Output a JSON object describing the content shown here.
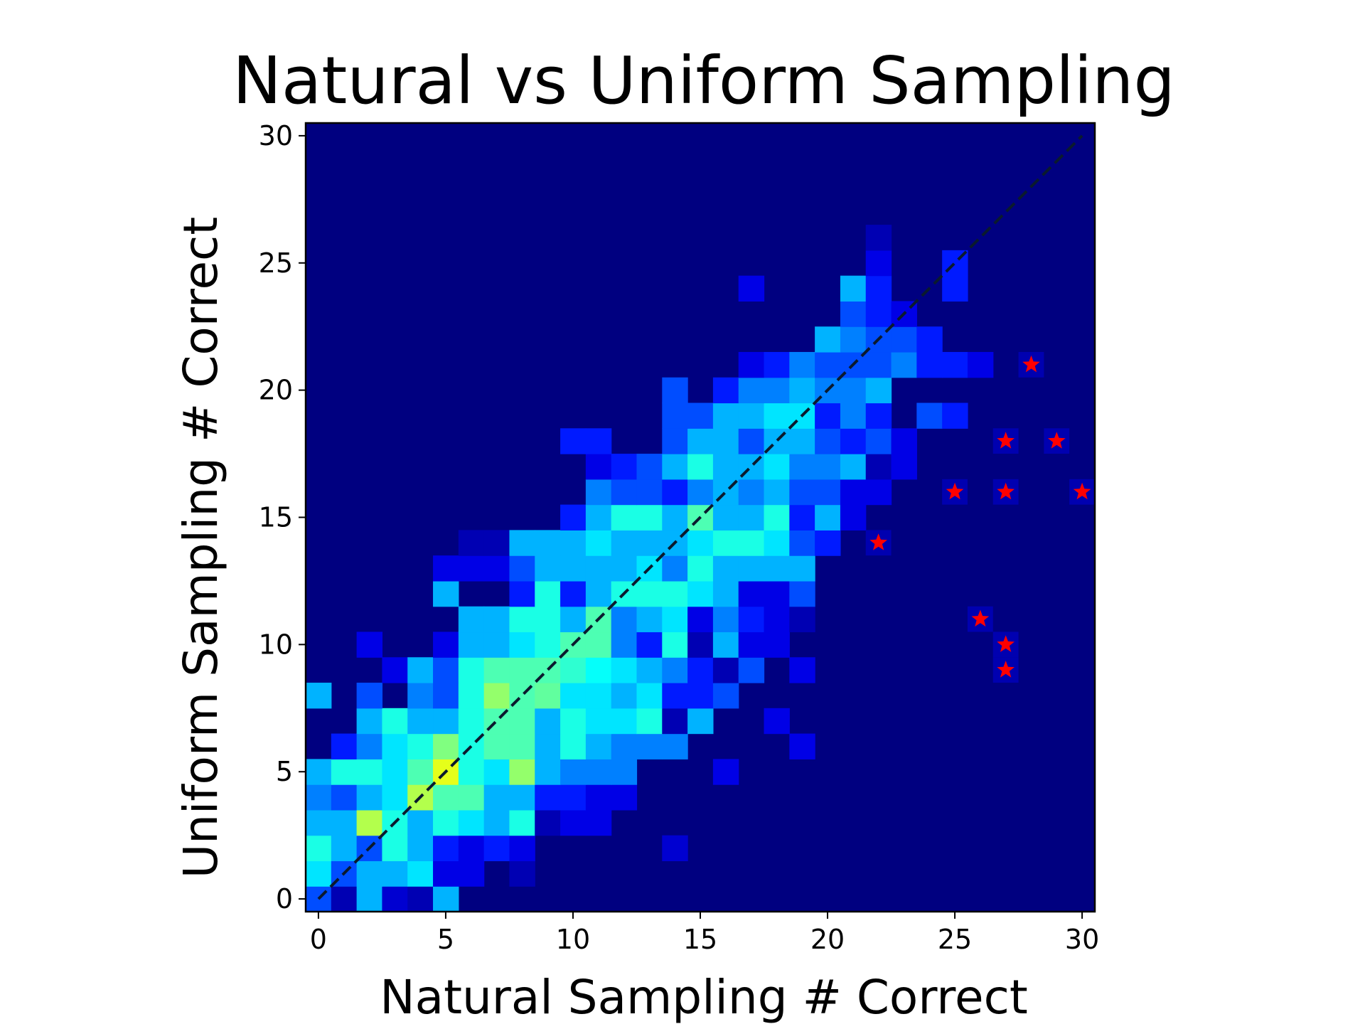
{
  "chart_data": {
    "type": "heatmap",
    "title": "Natural vs Uniform Sampling",
    "xlabel": "Natural Sampling # Correct",
    "ylabel": "Uniform Sampling # Correct",
    "xlim": [
      -0.5,
      30.5
    ],
    "ylim": [
      -0.5,
      30.5
    ],
    "x_ticks": [
      "0",
      "5",
      "10",
      "15",
      "20",
      "25",
      "30"
    ],
    "y_ticks": [
      "0",
      "5",
      "10",
      "15",
      "20",
      "25",
      "30"
    ],
    "colormap": "jet",
    "background_color": "#000080",
    "grid": false,
    "legend": "none",
    "heatmap_cells": [
      [
        0,
        0,
        0.2
      ],
      [
        1,
        0,
        0.05
      ],
      [
        2,
        0,
        0.3
      ],
      [
        3,
        0,
        0.08
      ],
      [
        4,
        0,
        0.05
      ],
      [
        5,
        0,
        0.3
      ],
      [
        0,
        1,
        0.35
      ],
      [
        1,
        1,
        0.2
      ],
      [
        2,
        1,
        0.3
      ],
      [
        3,
        1,
        0.3
      ],
      [
        4,
        1,
        0.35
      ],
      [
        5,
        1,
        0.1
      ],
      [
        6,
        1,
        0.1
      ],
      [
        8,
        1,
        0.05
      ],
      [
        0,
        2,
        0.4
      ],
      [
        1,
        2,
        0.3
      ],
      [
        2,
        2,
        0.2
      ],
      [
        3,
        2,
        0.4
      ],
      [
        4,
        2,
        0.3
      ],
      [
        5,
        2,
        0.15
      ],
      [
        6,
        2,
        0.1
      ],
      [
        7,
        2,
        0.15
      ],
      [
        8,
        2,
        0.1
      ],
      [
        14,
        2,
        0.08
      ],
      [
        0,
        3,
        0.3
      ],
      [
        1,
        3,
        0.3
      ],
      [
        2,
        3,
        0.55
      ],
      [
        3,
        3,
        0.4
      ],
      [
        4,
        3,
        0.3
      ],
      [
        5,
        3,
        0.4
      ],
      [
        6,
        3,
        0.35
      ],
      [
        7,
        3,
        0.3
      ],
      [
        8,
        3,
        0.4
      ],
      [
        9,
        3,
        0.05
      ],
      [
        10,
        3,
        0.1
      ],
      [
        11,
        3,
        0.1
      ],
      [
        0,
        4,
        0.25
      ],
      [
        1,
        4,
        0.2
      ],
      [
        2,
        4,
        0.3
      ],
      [
        3,
        4,
        0.35
      ],
      [
        4,
        4,
        0.55
      ],
      [
        5,
        4,
        0.45
      ],
      [
        6,
        4,
        0.45
      ],
      [
        7,
        4,
        0.3
      ],
      [
        8,
        4,
        0.3
      ],
      [
        9,
        4,
        0.15
      ],
      [
        10,
        4,
        0.15
      ],
      [
        11,
        4,
        0.1
      ],
      [
        12,
        4,
        0.1
      ],
      [
        0,
        5,
        0.3
      ],
      [
        1,
        5,
        0.4
      ],
      [
        2,
        5,
        0.4
      ],
      [
        3,
        5,
        0.35
      ],
      [
        4,
        5,
        0.45
      ],
      [
        5,
        5,
        0.6
      ],
      [
        6,
        5,
        0.4
      ],
      [
        7,
        5,
        0.35
      ],
      [
        8,
        5,
        0.52
      ],
      [
        9,
        5,
        0.3
      ],
      [
        10,
        5,
        0.25
      ],
      [
        11,
        5,
        0.25
      ],
      [
        12,
        5,
        0.25
      ],
      [
        16,
        5,
        0.1
      ],
      [
        1,
        6,
        0.15
      ],
      [
        2,
        6,
        0.25
      ],
      [
        3,
        6,
        0.35
      ],
      [
        4,
        6,
        0.4
      ],
      [
        5,
        6,
        0.5
      ],
      [
        6,
        6,
        0.4
      ],
      [
        7,
        6,
        0.45
      ],
      [
        8,
        6,
        0.45
      ],
      [
        9,
        6,
        0.3
      ],
      [
        10,
        6,
        0.4
      ],
      [
        11,
        6,
        0.3
      ],
      [
        12,
        6,
        0.25
      ],
      [
        13,
        6,
        0.25
      ],
      [
        14,
        6,
        0.25
      ],
      [
        19,
        6,
        0.1
      ],
      [
        2,
        7,
        0.3
      ],
      [
        3,
        7,
        0.4
      ],
      [
        4,
        7,
        0.3
      ],
      [
        5,
        7,
        0.3
      ],
      [
        6,
        7,
        0.4
      ],
      [
        7,
        7,
        0.45
      ],
      [
        8,
        7,
        0.45
      ],
      [
        9,
        7,
        0.3
      ],
      [
        10,
        7,
        0.4
      ],
      [
        11,
        7,
        0.35
      ],
      [
        12,
        7,
        0.35
      ],
      [
        13,
        7,
        0.4
      ],
      [
        14,
        7,
        0.05
      ],
      [
        15,
        7,
        0.3
      ],
      [
        18,
        7,
        0.1
      ],
      [
        0,
        8,
        0.3
      ],
      [
        2,
        8,
        0.2
      ],
      [
        4,
        8,
        0.25
      ],
      [
        5,
        8,
        0.2
      ],
      [
        6,
        8,
        0.4
      ],
      [
        7,
        8,
        0.52
      ],
      [
        8,
        8,
        0.45
      ],
      [
        9,
        8,
        0.47
      ],
      [
        10,
        8,
        0.35
      ],
      [
        11,
        8,
        0.35
      ],
      [
        12,
        8,
        0.3
      ],
      [
        13,
        8,
        0.35
      ],
      [
        14,
        8,
        0.15
      ],
      [
        15,
        8,
        0.15
      ],
      [
        16,
        8,
        0.2
      ],
      [
        3,
        9,
        0.1
      ],
      [
        4,
        9,
        0.3
      ],
      [
        5,
        9,
        0.2
      ],
      [
        6,
        9,
        0.4
      ],
      [
        7,
        9,
        0.45
      ],
      [
        8,
        9,
        0.45
      ],
      [
        9,
        9,
        0.45
      ],
      [
        10,
        9,
        0.42
      ],
      [
        11,
        9,
        0.38
      ],
      [
        12,
        9,
        0.35
      ],
      [
        13,
        9,
        0.3
      ],
      [
        14,
        9,
        0.25
      ],
      [
        15,
        9,
        0.15
      ],
      [
        16,
        9,
        0.05
      ],
      [
        17,
        9,
        0.2
      ],
      [
        19,
        9,
        0.1
      ],
      [
        2,
        10,
        0.1
      ],
      [
        5,
        10,
        0.1
      ],
      [
        6,
        10,
        0.3
      ],
      [
        7,
        10,
        0.3
      ],
      [
        8,
        10,
        0.35
      ],
      [
        9,
        10,
        0.4
      ],
      [
        10,
        10,
        0.45
      ],
      [
        11,
        10,
        0.45
      ],
      [
        12,
        10,
        0.25
      ],
      [
        13,
        10,
        0.15
      ],
      [
        14,
        10,
        0.4
      ],
      [
        15,
        10,
        0.05
      ],
      [
        16,
        10,
        0.3
      ],
      [
        17,
        10,
        0.1
      ],
      [
        18,
        10,
        0.1
      ],
      [
        6,
        11,
        0.3
      ],
      [
        7,
        11,
        0.3
      ],
      [
        8,
        11,
        0.4
      ],
      [
        9,
        11,
        0.4
      ],
      [
        10,
        11,
        0.3
      ],
      [
        11,
        11,
        0.45
      ],
      [
        12,
        11,
        0.25
      ],
      [
        13,
        11,
        0.3
      ],
      [
        14,
        11,
        0.35
      ],
      [
        15,
        11,
        0.1
      ],
      [
        16,
        11,
        0.25
      ],
      [
        17,
        11,
        0.15
      ],
      [
        18,
        11,
        0.1
      ],
      [
        19,
        11,
        0.05
      ],
      [
        5,
        12,
        0.3
      ],
      [
        8,
        12,
        0.15
      ],
      [
        9,
        12,
        0.4
      ],
      [
        10,
        12,
        0.15
      ],
      [
        11,
        12,
        0.3
      ],
      [
        12,
        12,
        0.4
      ],
      [
        13,
        12,
        0.4
      ],
      [
        14,
        12,
        0.4
      ],
      [
        15,
        12,
        0.35
      ],
      [
        16,
        12,
        0.3
      ],
      [
        17,
        12,
        0.1
      ],
      [
        18,
        12,
        0.1
      ],
      [
        19,
        12,
        0.2
      ],
      [
        5,
        13,
        0.1
      ],
      [
        6,
        13,
        0.1
      ],
      [
        7,
        13,
        0.1
      ],
      [
        8,
        13,
        0.2
      ],
      [
        9,
        13,
        0.3
      ],
      [
        10,
        13,
        0.3
      ],
      [
        11,
        13,
        0.3
      ],
      [
        12,
        13,
        0.3
      ],
      [
        13,
        13,
        0.35
      ],
      [
        14,
        13,
        0.25
      ],
      [
        15,
        13,
        0.4
      ],
      [
        16,
        13,
        0.3
      ],
      [
        17,
        13,
        0.3
      ],
      [
        18,
        13,
        0.3
      ],
      [
        19,
        13,
        0.3
      ],
      [
        6,
        14,
        0.05
      ],
      [
        7,
        14,
        0.05
      ],
      [
        8,
        14,
        0.3
      ],
      [
        9,
        14,
        0.3
      ],
      [
        10,
        14,
        0.3
      ],
      [
        11,
        14,
        0.35
      ],
      [
        12,
        14,
        0.3
      ],
      [
        13,
        14,
        0.3
      ],
      [
        14,
        14,
        0.3
      ],
      [
        15,
        14,
        0.35
      ],
      [
        16,
        14,
        0.4
      ],
      [
        17,
        14,
        0.4
      ],
      [
        18,
        14,
        0.35
      ],
      [
        19,
        14,
        0.2
      ],
      [
        20,
        14,
        0.15
      ],
      [
        10,
        15,
        0.15
      ],
      [
        11,
        15,
        0.3
      ],
      [
        12,
        15,
        0.4
      ],
      [
        13,
        15,
        0.4
      ],
      [
        14,
        15,
        0.3
      ],
      [
        15,
        15,
        0.45
      ],
      [
        16,
        15,
        0.3
      ],
      [
        17,
        15,
        0.3
      ],
      [
        18,
        15,
        0.4
      ],
      [
        19,
        15,
        0.15
      ],
      [
        20,
        15,
        0.3
      ],
      [
        21,
        15,
        0.1
      ],
      [
        11,
        16,
        0.25
      ],
      [
        12,
        16,
        0.2
      ],
      [
        13,
        16,
        0.2
      ],
      [
        14,
        16,
        0.15
      ],
      [
        15,
        16,
        0.25
      ],
      [
        16,
        16,
        0.3
      ],
      [
        17,
        16,
        0.25
      ],
      [
        18,
        16,
        0.3
      ],
      [
        19,
        16,
        0.2
      ],
      [
        20,
        16,
        0.2
      ],
      [
        21,
        16,
        0.1
      ],
      [
        22,
        16,
        0.1
      ],
      [
        11,
        17,
        0.1
      ],
      [
        12,
        17,
        0.15
      ],
      [
        13,
        17,
        0.2
      ],
      [
        14,
        17,
        0.3
      ],
      [
        15,
        17,
        0.4
      ],
      [
        16,
        17,
        0.3
      ],
      [
        17,
        17,
        0.3
      ],
      [
        18,
        17,
        0.35
      ],
      [
        19,
        17,
        0.25
      ],
      [
        20,
        17,
        0.25
      ],
      [
        21,
        17,
        0.3
      ],
      [
        22,
        17,
        0.05
      ],
      [
        23,
        17,
        0.1
      ],
      [
        10,
        18,
        0.15
      ],
      [
        11,
        18,
        0.15
      ],
      [
        14,
        18,
        0.2
      ],
      [
        15,
        18,
        0.3
      ],
      [
        16,
        18,
        0.3
      ],
      [
        17,
        18,
        0.2
      ],
      [
        18,
        18,
        0.3
      ],
      [
        19,
        18,
        0.3
      ],
      [
        20,
        18,
        0.2
      ],
      [
        21,
        18,
        0.15
      ],
      [
        22,
        18,
        0.2
      ],
      [
        23,
        18,
        0.1
      ],
      [
        14,
        19,
        0.2
      ],
      [
        15,
        19,
        0.2
      ],
      [
        16,
        19,
        0.3
      ],
      [
        17,
        19,
        0.3
      ],
      [
        18,
        19,
        0.35
      ],
      [
        19,
        19,
        0.35
      ],
      [
        20,
        19,
        0.15
      ],
      [
        21,
        19,
        0.25
      ],
      [
        22,
        19,
        0.15
      ],
      [
        24,
        19,
        0.2
      ],
      [
        25,
        19,
        0.15
      ],
      [
        14,
        20,
        0.2
      ],
      [
        16,
        20,
        0.15
      ],
      [
        17,
        20,
        0.25
      ],
      [
        18,
        20,
        0.25
      ],
      [
        19,
        20,
        0.3
      ],
      [
        20,
        20,
        0.25
      ],
      [
        21,
        20,
        0.25
      ],
      [
        22,
        20,
        0.3
      ],
      [
        17,
        21,
        0.1
      ],
      [
        18,
        21,
        0.15
      ],
      [
        19,
        21,
        0.25
      ],
      [
        20,
        21,
        0.2
      ],
      [
        21,
        21,
        0.2
      ],
      [
        22,
        21,
        0.2
      ],
      [
        23,
        21,
        0.25
      ],
      [
        24,
        21,
        0.15
      ],
      [
        25,
        21,
        0.15
      ],
      [
        26,
        21,
        0.1
      ],
      [
        20,
        22,
        0.3
      ],
      [
        21,
        22,
        0.25
      ],
      [
        22,
        22,
        0.2
      ],
      [
        23,
        22,
        0.2
      ],
      [
        24,
        22,
        0.15
      ],
      [
        21,
        23,
        0.2
      ],
      [
        22,
        23,
        0.15
      ],
      [
        23,
        23,
        0.1
      ],
      [
        21,
        24,
        0.3
      ],
      [
        22,
        24,
        0.15
      ],
      [
        25,
        24,
        0.15
      ],
      [
        17,
        24,
        0.1
      ],
      [
        22,
        25,
        0.1
      ],
      [
        25,
        25,
        0.15
      ],
      [
        22,
        26,
        0.05
      ]
    ],
    "star_markers": [
      {
        "x": 22,
        "y": 14
      },
      {
        "x": 25,
        "y": 16
      },
      {
        "x": 26,
        "y": 11
      },
      {
        "x": 27,
        "y": 18
      },
      {
        "x": 27,
        "y": 16
      },
      {
        "x": 27,
        "y": 10
      },
      {
        "x": 27,
        "y": 9
      },
      {
        "x": 28,
        "y": 21
      },
      {
        "x": 29,
        "y": 18
      },
      {
        "x": 30,
        "y": 16
      }
    ],
    "reference_line": {
      "from": [
        0,
        0
      ],
      "to": [
        30,
        30
      ],
      "style": "dashed",
      "color": "#0b1a2e"
    },
    "marker_color": "#ff0000"
  }
}
